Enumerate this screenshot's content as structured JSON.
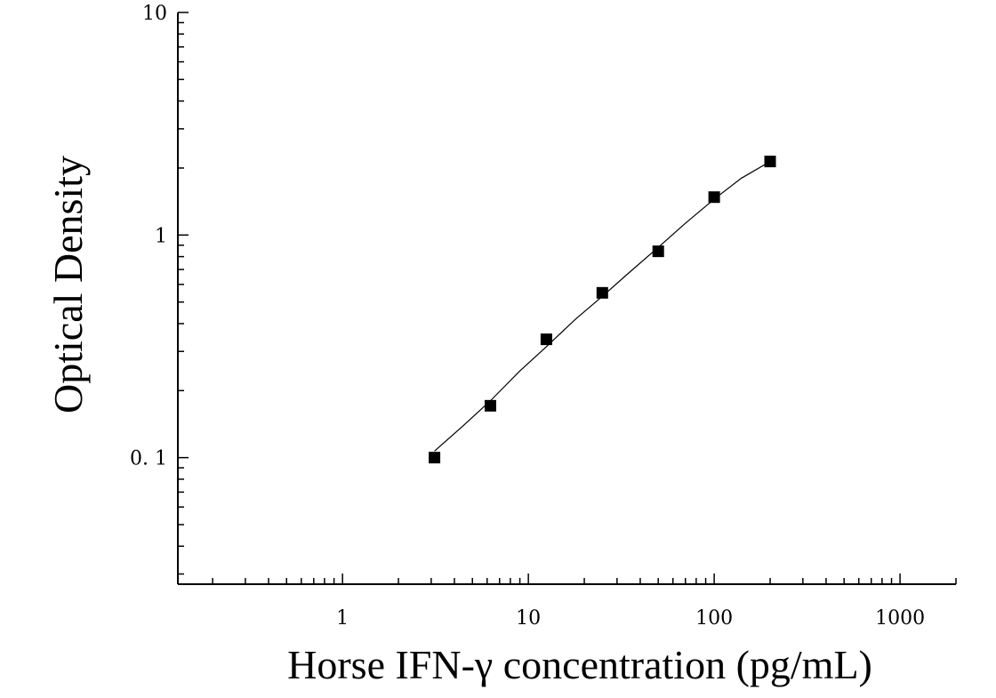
{
  "chart_data": {
    "type": "scatter",
    "title": "",
    "xlabel": "Horse IFN-γ concentration (pg/mL)",
    "ylabel": "Optical Density",
    "x_scale": "log",
    "y_scale": "log",
    "xlim": [
      0.13,
      2000
    ],
    "ylim": [
      0.027,
      10
    ],
    "x_ticks": [
      1,
      10,
      100,
      1000
    ],
    "x_tick_labels": [
      "1",
      "10",
      "100",
      "1000"
    ],
    "y_ticks": [
      0.1,
      1,
      10
    ],
    "y_tick_labels": [
      "0. 1",
      "1",
      "10"
    ],
    "grid": false,
    "legend": "none",
    "marker": "square",
    "marker_color": "#000000",
    "line_color": "#000000",
    "series": [
      {
        "x": [
          3.125,
          6.25,
          12.5,
          25,
          50,
          100,
          200
        ],
        "y": [
          0.1,
          0.171,
          0.34,
          0.55,
          0.845,
          1.48,
          2.14
        ]
      }
    ],
    "fit_curve": {
      "x": [
        3.125,
        4.5,
        6.25,
        9,
        12.5,
        18,
        25,
        35,
        50,
        70,
        100,
        140,
        200
      ],
      "y": [
        0.107,
        0.14,
        0.18,
        0.245,
        0.315,
        0.42,
        0.53,
        0.68,
        0.88,
        1.13,
        1.45,
        1.8,
        2.14
      ]
    }
  }
}
